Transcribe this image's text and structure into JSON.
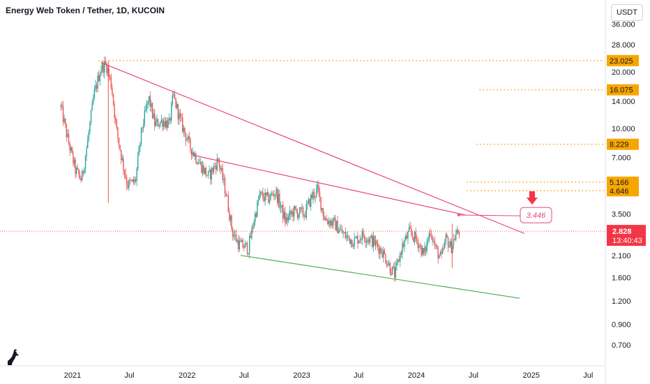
{
  "header": {
    "title": "Energy Web Token / Tether, 1D, KUCOIN",
    "currency": "USDT"
  },
  "colors": {
    "up": "#26a69a",
    "down": "#ef5350",
    "trendline": "#e8467a",
    "support": "#4caf50",
    "levels": "#f7a600",
    "last_price": "#f23645"
  },
  "chart_data": {
    "type": "candlestick",
    "y_scale": "log",
    "ylim": [
      0.6,
      40
    ],
    "x_tick_labels": [
      "2021",
      "Jul",
      "2022",
      "Jul",
      "2023",
      "Jul",
      "2024",
      "Jul",
      "2025",
      "Jul"
    ],
    "x_tick_dates": [
      "2021-01-01",
      "2021-07-01",
      "2022-01-01",
      "2022-07-01",
      "2023-01-01",
      "2023-07-01",
      "2024-01-01",
      "2024-07-01",
      "2025-01-01",
      "2025-07-01"
    ],
    "y_ticks": [
      {
        "value": 36,
        "label": "36.000"
      },
      {
        "value": 28,
        "label": "28.000"
      },
      {
        "value": 20,
        "label": "20.000"
      },
      {
        "value": 14,
        "label": "14.000"
      },
      {
        "value": 10,
        "label": "10.000"
      },
      {
        "value": 7,
        "label": "7.000"
      },
      {
        "value": 3.5,
        "label": "3.500"
      },
      {
        "value": 2.1,
        "label": "2.100"
      },
      {
        "value": 1.6,
        "label": "1.600"
      },
      {
        "value": 1.2,
        "label": "1.200"
      },
      {
        "value": 0.9,
        "label": "0.900"
      },
      {
        "value": 0.7,
        "label": "0.700"
      }
    ],
    "price_path": [
      {
        "date": "2020-11-25",
        "price": 13.0
      },
      {
        "date": "2020-12-15",
        "price": 9.0
      },
      {
        "date": "2021-01-10",
        "price": 6.0
      },
      {
        "date": "2021-01-30",
        "price": 5.3
      },
      {
        "date": "2021-02-20",
        "price": 9.0
      },
      {
        "date": "2021-03-10",
        "price": 15.0
      },
      {
        "date": "2021-04-01",
        "price": 21.0
      },
      {
        "date": "2021-04-18",
        "price": 22.0
      },
      {
        "date": "2021-05-05",
        "price": 17.0
      },
      {
        "date": "2021-05-20",
        "price": 10.0
      },
      {
        "date": "2021-06-10",
        "price": 6.5
      },
      {
        "date": "2021-06-25",
        "price": 5.0
      },
      {
        "date": "2021-07-20",
        "price": 5.2
      },
      {
        "date": "2021-08-10",
        "price": 10.0
      },
      {
        "date": "2021-09-01",
        "price": 14.5
      },
      {
        "date": "2021-09-20",
        "price": 10.5
      },
      {
        "date": "2021-10-15",
        "price": 11.0
      },
      {
        "date": "2021-11-05",
        "price": 10.5
      },
      {
        "date": "2021-11-18",
        "price": 15.0
      },
      {
        "date": "2021-12-10",
        "price": 11.0
      },
      {
        "date": "2022-01-10",
        "price": 8.0
      },
      {
        "date": "2022-02-10",
        "price": 6.5
      },
      {
        "date": "2022-03-10",
        "price": 5.5
      },
      {
        "date": "2022-04-10",
        "price": 6.8
      },
      {
        "date": "2022-05-05",
        "price": 4.5
      },
      {
        "date": "2022-05-25",
        "price": 2.8
      },
      {
        "date": "2022-06-15",
        "price": 2.4
      },
      {
        "date": "2022-07-15",
        "price": 2.3
      },
      {
        "date": "2022-08-01",
        "price": 3.2
      },
      {
        "date": "2022-08-20",
        "price": 4.4
      },
      {
        "date": "2022-09-15",
        "price": 4.2
      },
      {
        "date": "2022-10-10",
        "price": 4.6
      },
      {
        "date": "2022-11-10",
        "price": 3.2
      },
      {
        "date": "2022-12-05",
        "price": 3.6
      },
      {
        "date": "2023-01-10",
        "price": 3.5
      },
      {
        "date": "2023-02-01",
        "price": 4.3
      },
      {
        "date": "2023-02-20",
        "price": 4.7
      },
      {
        "date": "2023-03-15",
        "price": 3.3
      },
      {
        "date": "2023-04-15",
        "price": 3.1
      },
      {
        "date": "2023-05-15",
        "price": 2.7
      },
      {
        "date": "2023-06-15",
        "price": 2.5
      },
      {
        "date": "2023-07-15",
        "price": 2.7
      },
      {
        "date": "2023-08-15",
        "price": 2.5
      },
      {
        "date": "2023-09-15",
        "price": 2.2
      },
      {
        "date": "2023-10-10",
        "price": 1.8
      },
      {
        "date": "2023-10-25",
        "price": 1.65
      },
      {
        "date": "2023-11-15",
        "price": 2.3
      },
      {
        "date": "2023-12-10",
        "price": 2.8
      },
      {
        "date": "2024-01-05",
        "price": 2.5
      },
      {
        "date": "2024-01-25",
        "price": 2.1
      },
      {
        "date": "2024-02-15",
        "price": 2.9
      },
      {
        "date": "2024-03-01",
        "price": 2.3
      },
      {
        "date": "2024-03-20",
        "price": 2.0
      },
      {
        "date": "2024-04-05",
        "price": 2.6
      },
      {
        "date": "2024-04-20",
        "price": 2.3
      },
      {
        "date": "2024-05-05",
        "price": 2.7
      },
      {
        "date": "2024-05-18",
        "price": 2.83
      }
    ],
    "drawings": {
      "resistance_lines": [
        {
          "from": {
            "date": "2021-04-01",
            "price": 22.5
          },
          "to": {
            "date": "2024-12-10",
            "price": 2.75
          }
        },
        {
          "from": {
            "date": "2022-01-20",
            "price": 7.2
          },
          "to": {
            "date": "2024-06-05",
            "price": 3.45
          }
        }
      ],
      "support_line": {
        "from": {
          "date": "2022-06-20",
          "price": 2.1
        },
        "to": {
          "date": "2024-11-25",
          "price": 1.24
        }
      },
      "levels": [
        {
          "price": 23.025,
          "label": "23.025",
          "start": "2021-03-25"
        },
        {
          "price": 16.075,
          "label": "16.075",
          "start": "2024-07-20"
        },
        {
          "price": 8.229,
          "label": "8.229",
          "start": "2024-07-10"
        },
        {
          "price": 5.166,
          "label": "5.166",
          "start": "2024-06-10"
        },
        {
          "price": 4.646,
          "label": "4.646",
          "start": "2024-06-10"
        }
      ],
      "target": {
        "price": 3.446,
        "label": "3.446",
        "point": {
          "date": "2024-05-15",
          "price": 3.45
        }
      },
      "last_price": {
        "price": 2.828,
        "label": "2.828",
        "countdown": "13:40:43"
      }
    }
  }
}
